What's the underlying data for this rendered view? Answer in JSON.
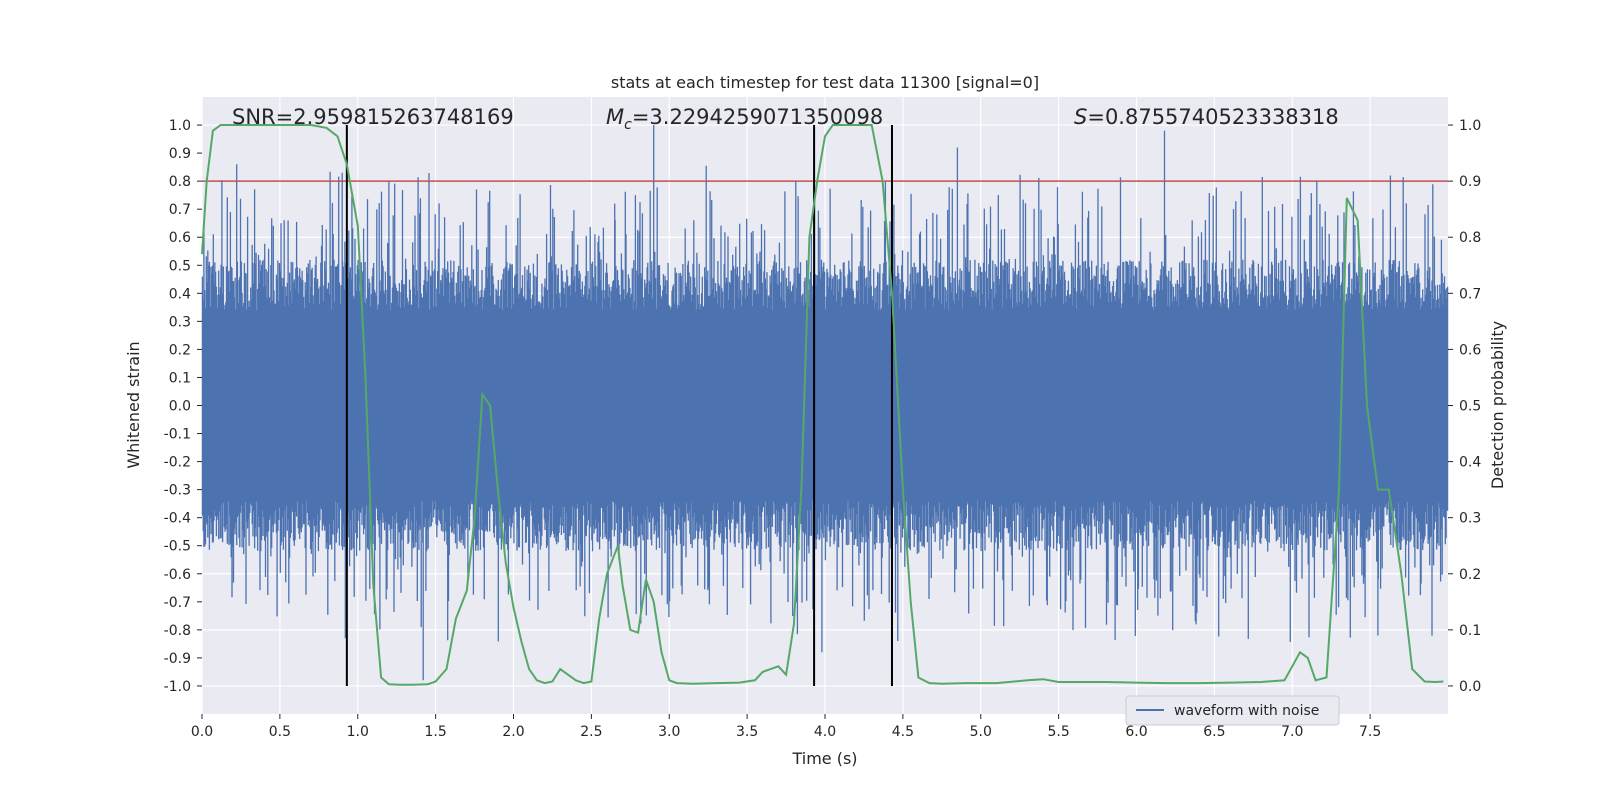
{
  "chart_data": {
    "type": "line",
    "title": "stats at each timestep for test data 11300 [signal=0]",
    "xlabel": "Time (s)",
    "ylabel_left": "Whitened strain",
    "ylabel_right": "Detection probability",
    "xlim": [
      0.0,
      8.0
    ],
    "ylim_left": [
      -1.1,
      1.1
    ],
    "ylim_right": [
      -0.05,
      1.05
    ],
    "xticks": [
      "0.0",
      "0.5",
      "1.0",
      "1.5",
      "2.0",
      "2.5",
      "3.0",
      "3.5",
      "4.0",
      "4.5",
      "5.0",
      "5.5",
      "6.0",
      "6.5",
      "7.0",
      "7.5"
    ],
    "yticks_left": [
      "1.0",
      "0.9",
      "0.8",
      "0.7",
      "0.6",
      "0.5",
      "0.4",
      "0.3",
      "0.2",
      "0.1",
      "0.0",
      "-0.1",
      "-0.2",
      "-0.3",
      "-0.4",
      "-0.5",
      "-0.6",
      "-0.7",
      "-0.8",
      "-0.9",
      "-1.0"
    ],
    "yticks_right": [
      "1.0",
      "0.9",
      "0.8",
      "0.7",
      "0.6",
      "0.5",
      "0.4",
      "0.3",
      "0.2",
      "0.1",
      "0.0"
    ],
    "grid": true,
    "legend": {
      "position": "lower-right",
      "entries": [
        "waveform with noise"
      ]
    },
    "annotations": {
      "snr": "SNR=2.959815263748169",
      "mc": "=3.2294259071350098",
      "mc_symbol": "M",
      "mc_subscript": "c",
      "s": "=0.8755740523338318",
      "s_symbol": "S"
    },
    "threshold": {
      "value": 0.9,
      "axis": "right",
      "color": "#c44e52"
    },
    "vertical_lines": [
      0.93,
      3.93,
      4.43
    ],
    "series": [
      {
        "name": "waveform with noise",
        "axis": "left",
        "color": "#4c72b0",
        "kind": "noise",
        "sample_count": 1600,
        "core_amplitude": 0.3,
        "spike_max": 1.0,
        "spike_min": -0.98
      },
      {
        "name": "detection probability",
        "axis": "right",
        "color": "#55a868",
        "x": [
          0.0,
          0.03,
          0.07,
          0.12,
          0.2,
          0.3,
          0.5,
          0.7,
          0.8,
          0.87,
          0.93,
          1.0,
          1.05,
          1.1,
          1.15,
          1.2,
          1.27,
          1.35,
          1.45,
          1.5,
          1.57,
          1.63,
          1.7,
          1.75,
          1.8,
          1.85,
          1.9,
          1.95,
          2.0,
          2.05,
          2.1,
          2.15,
          2.2,
          2.25,
          2.3,
          2.35,
          2.4,
          2.45,
          2.5,
          2.55,
          2.6,
          2.67,
          2.7,
          2.75,
          2.8,
          2.85,
          2.9,
          2.95,
          3.0,
          3.05,
          3.15,
          3.3,
          3.45,
          3.55,
          3.6,
          3.65,
          3.7,
          3.75,
          3.8,
          3.85,
          3.9,
          3.95,
          4.0,
          4.05,
          4.1,
          4.2,
          4.3,
          4.37,
          4.43,
          4.5,
          4.55,
          4.6,
          4.67,
          4.75,
          4.9,
          5.1,
          5.3,
          5.4,
          5.5,
          5.6,
          5.8,
          6.0,
          6.2,
          6.4,
          6.6,
          6.8,
          6.95,
          7.05,
          7.1,
          7.15,
          7.22,
          7.3,
          7.35,
          7.42,
          7.48,
          7.55,
          7.62,
          7.7,
          7.77,
          7.85,
          7.92,
          7.97
        ],
        "y": [
          0.77,
          0.9,
          0.99,
          1.0,
          1.0,
          1.0,
          1.0,
          1.0,
          0.995,
          0.98,
          0.93,
          0.82,
          0.55,
          0.18,
          0.015,
          0.003,
          0.002,
          0.002,
          0.003,
          0.008,
          0.03,
          0.12,
          0.17,
          0.3,
          0.52,
          0.5,
          0.35,
          0.22,
          0.14,
          0.08,
          0.03,
          0.01,
          0.005,
          0.008,
          0.03,
          0.02,
          0.01,
          0.005,
          0.008,
          0.12,
          0.2,
          0.25,
          0.18,
          0.1,
          0.095,
          0.19,
          0.15,
          0.06,
          0.01,
          0.005,
          0.004,
          0.005,
          0.006,
          0.01,
          0.025,
          0.03,
          0.035,
          0.02,
          0.11,
          0.36,
          0.8,
          0.9,
          0.98,
          1.0,
          1.0,
          1.0,
          1.0,
          0.9,
          0.7,
          0.35,
          0.15,
          0.015,
          0.005,
          0.004,
          0.005,
          0.005,
          0.01,
          0.012,
          0.007,
          0.007,
          0.007,
          0.006,
          0.005,
          0.005,
          0.006,
          0.007,
          0.01,
          0.06,
          0.05,
          0.01,
          0.015,
          0.35,
          0.87,
          0.83,
          0.5,
          0.35,
          0.35,
          0.2,
          0.03,
          0.008,
          0.007,
          0.008
        ]
      }
    ]
  }
}
